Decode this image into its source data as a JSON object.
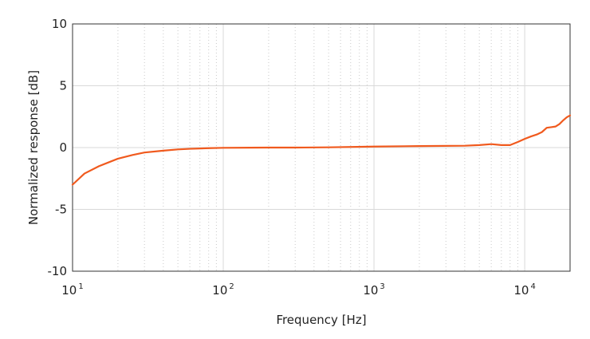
{
  "chart_data": {
    "type": "line",
    "xlabel": "Frequency [Hz]",
    "ylabel": "Normalized response [dB]",
    "xscale": "log",
    "xlim": [
      10,
      20000
    ],
    "ylim": [
      -10,
      10
    ],
    "grid": true,
    "x_ticks": [
      {
        "base": "10",
        "exp": "1"
      },
      {
        "base": "10",
        "exp": "2"
      },
      {
        "base": "10",
        "exp": "3"
      },
      {
        "base": "10",
        "exp": "4"
      }
    ],
    "y_ticks": [
      "10",
      "5",
      "0",
      "-5",
      "-10"
    ],
    "series": [
      {
        "color": "#f05a1e",
        "x": [
          10,
          12,
          15,
          20,
          25,
          30,
          40,
          50,
          60,
          80,
          100,
          150,
          200,
          300,
          500,
          1000,
          2000,
          4000,
          5000,
          6000,
          7000,
          8000,
          9000,
          10000,
          11000,
          12000,
          13000,
          14000,
          15000,
          16000,
          17000,
          18000,
          19000,
          20000
        ],
        "y": [
          -3.0,
          -2.1,
          -1.5,
          -0.9,
          -0.6,
          -0.4,
          -0.25,
          -0.15,
          -0.1,
          -0.05,
          -0.02,
          -0.01,
          0.0,
          0.0,
          0.02,
          0.08,
          0.12,
          0.15,
          0.2,
          0.28,
          0.2,
          0.2,
          0.45,
          0.7,
          0.9,
          1.05,
          1.25,
          1.6,
          1.65,
          1.7,
          1.9,
          2.2,
          2.45,
          2.6
        ]
      }
    ]
  }
}
